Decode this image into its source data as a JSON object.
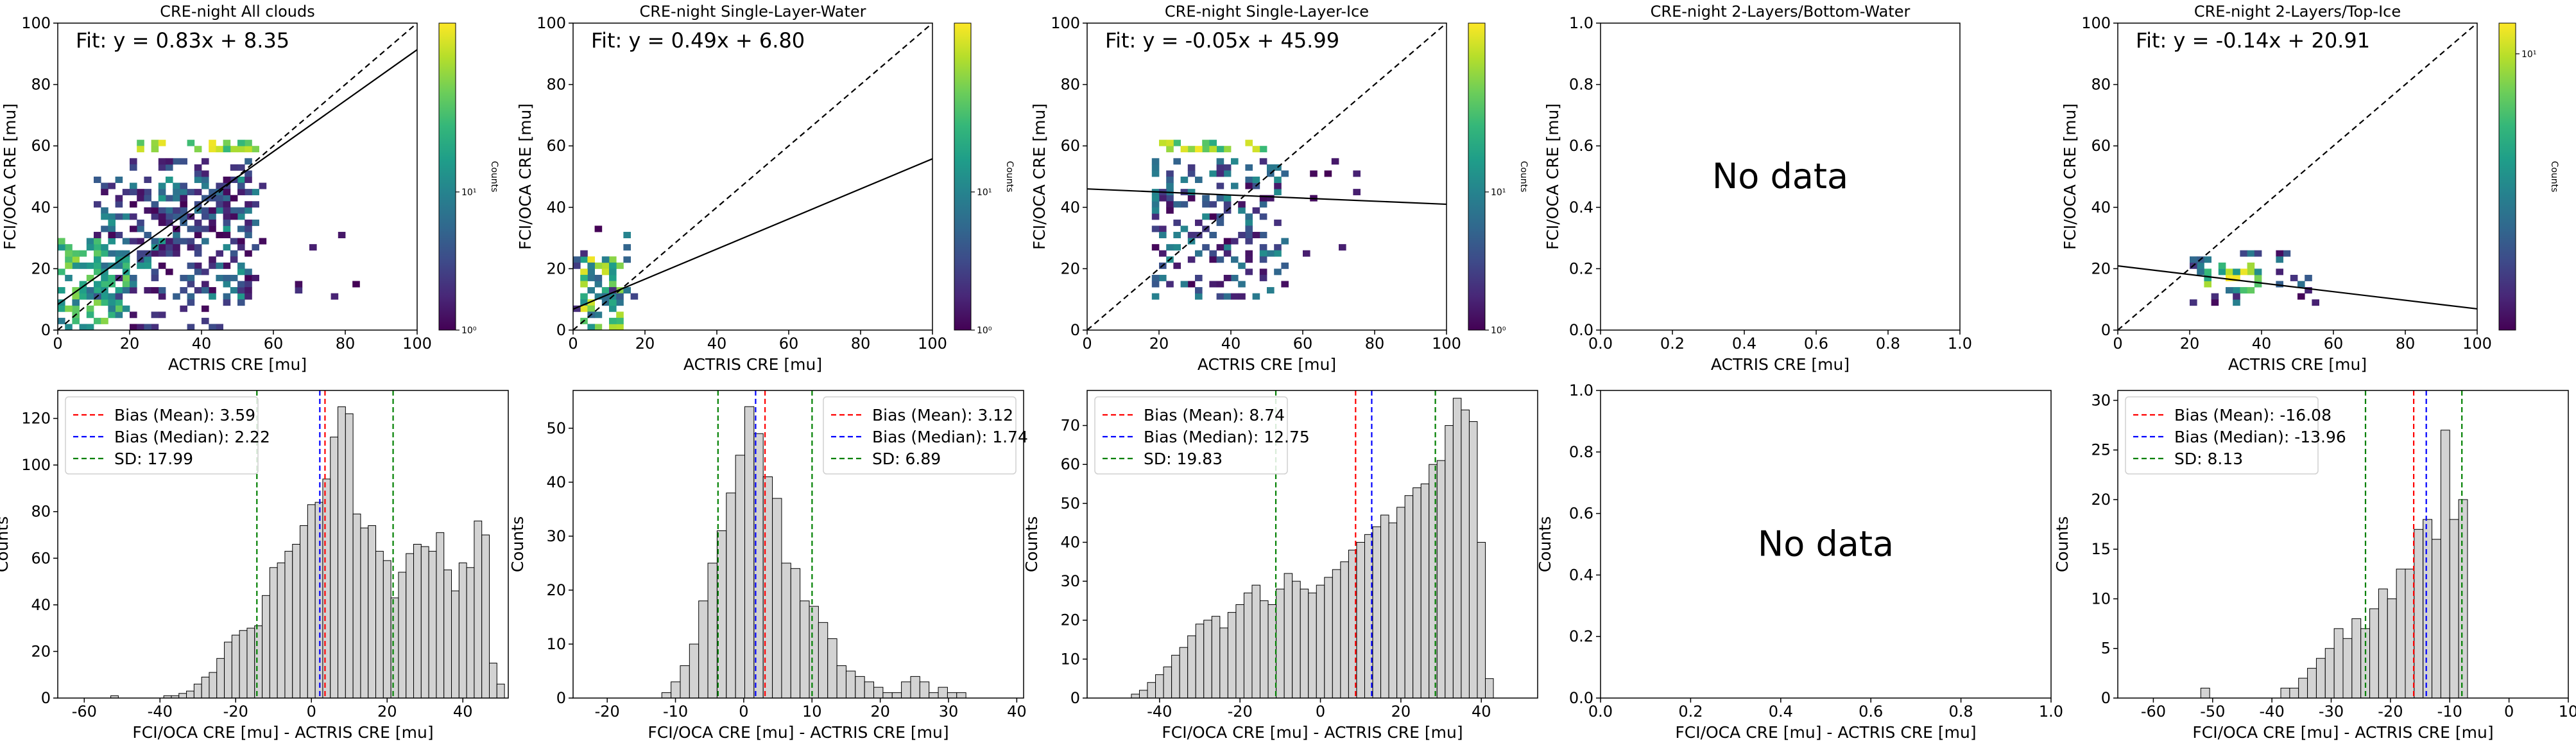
{
  "colors": {
    "fit_line": "#000000",
    "one_to_one": "#000000",
    "hist_fill": "#d3d3d3",
    "hist_edge": "#000000",
    "mean": "#ff0000",
    "median": "#0000ff",
    "sd": "#008000"
  },
  "colormap": "viridis",
  "chart_data": [
    {
      "type": "heatmap",
      "panel": "top",
      "col": 0,
      "title": "CRE-night All clouds",
      "xlabel": "ACTRIS CRE [mu]",
      "ylabel": "FCI/OCA CRE [mu]",
      "xlim": [
        0,
        100
      ],
      "ylim": [
        0,
        100
      ],
      "xticks": [
        0,
        20,
        40,
        60,
        80,
        100
      ],
      "yticks": [
        0,
        20,
        40,
        60,
        80,
        100
      ],
      "fit_text": "Fit: y = 0.83x + 8.35",
      "fit": {
        "slope": 0.83,
        "intercept": 8.35
      },
      "one_to_one": true,
      "colorbar": {
        "label": "Counts",
        "scale": "log",
        "ticks": [
          "10⁰",
          "10¹"
        ]
      },
      "clusters": [
        {
          "x": [
            0,
            20
          ],
          "y": [
            0,
            30
          ],
          "count": 110,
          "level": [
            0.35,
            0.85
          ]
        },
        {
          "x": [
            10,
            55
          ],
          "y": [
            10,
            50
          ],
          "count": 170,
          "level": [
            0.0,
            0.55
          ]
        },
        {
          "x": [
            20,
            55
          ],
          "y": [
            0,
            40
          ],
          "count": 70,
          "level": [
            0.0,
            0.3
          ]
        },
        {
          "x": [
            20,
            55
          ],
          "y": [
            32,
            56
          ],
          "count": 80,
          "level": [
            0.0,
            0.35
          ]
        },
        {
          "x": [
            22,
            55
          ],
          "y": [
            58,
            62
          ],
          "count": 26,
          "level": [
            0.65,
            1.0
          ]
        },
        {
          "x": [
            55,
            90
          ],
          "y": [
            10,
            50
          ],
          "count": 9,
          "level": [
            0.0,
            0.15
          ]
        }
      ]
    },
    {
      "type": "heatmap",
      "panel": "top",
      "col": 1,
      "title": "CRE-night Single-Layer-Water",
      "xlabel": "ACTRIS CRE [mu]",
      "ylabel": "FCI/OCA CRE [mu]",
      "xlim": [
        0,
        100
      ],
      "ylim": [
        0,
        100
      ],
      "xticks": [
        0,
        20,
        40,
        60,
        80,
        100
      ],
      "yticks": [
        0,
        20,
        40,
        60,
        80,
        100
      ],
      "fit_text": "Fit: y = 0.49x + 6.80",
      "fit": {
        "slope": 0.49,
        "intercept": 6.8
      },
      "one_to_one": true,
      "colorbar": {
        "label": "Counts",
        "scale": "log",
        "ticks": [
          "10⁰",
          "10¹"
        ]
      },
      "clusters": [
        {
          "x": [
            2,
            14
          ],
          "y": [
            0,
            24
          ],
          "count": 60,
          "level": [
            0.3,
            1.0
          ]
        },
        {
          "x": [
            0,
            18
          ],
          "y": [
            0,
            34
          ],
          "count": 25,
          "level": [
            0.0,
            0.45
          ]
        }
      ]
    },
    {
      "type": "heatmap",
      "panel": "top",
      "col": 2,
      "title": "CRE-night Single-Layer-Ice",
      "xlabel": "ACTRIS CRE [mu]",
      "ylabel": "FCI/OCA CRE [mu]",
      "xlim": [
        0,
        100
      ],
      "ylim": [
        0,
        100
      ],
      "xticks": [
        0,
        20,
        40,
        60,
        80,
        100
      ],
      "yticks": [
        0,
        20,
        40,
        60,
        80,
        100
      ],
      "fit_text": "Fit: y = -0.05x + 45.99",
      "fit": {
        "slope": -0.05,
        "intercept": 45.99
      },
      "one_to_one": true,
      "colorbar": {
        "label": "Counts",
        "scale": "log",
        "ticks": [
          "10⁰",
          "10¹"
        ]
      },
      "clusters": [
        {
          "x": [
            18,
            55
          ],
          "y": [
            10,
            56
          ],
          "count": 170,
          "level": [
            0.0,
            0.5
          ]
        },
        {
          "x": [
            20,
            52
          ],
          "y": [
            58,
            62
          ],
          "count": 22,
          "level": [
            0.6,
            1.0
          ]
        },
        {
          "x": [
            55,
            75
          ],
          "y": [
            20,
            60
          ],
          "count": 8,
          "level": [
            0.0,
            0.12
          ]
        }
      ]
    },
    {
      "type": "heatmap",
      "panel": "top",
      "col": 3,
      "title": "CRE-night 2-Layers/Bottom-Water",
      "xlabel": "ACTRIS CRE [mu]",
      "ylabel": "FCI/OCA CRE [mu]",
      "xlim": [
        0,
        1
      ],
      "ylim": [
        0,
        1
      ],
      "xticks": [
        "0.0",
        "0.2",
        "0.4",
        "0.6",
        "0.8",
        "1.0"
      ],
      "yticks": [
        "0.0",
        "0.2",
        "0.4",
        "0.6",
        "0.8",
        "1.0"
      ],
      "no_data": "No data"
    },
    {
      "type": "heatmap",
      "panel": "top",
      "col": 4,
      "title": "CRE-night 2-Layers/Top-Ice",
      "xlabel": "ACTRIS CRE [mu]",
      "ylabel": "FCI/OCA CRE [mu]",
      "xlim": [
        0,
        100
      ],
      "ylim": [
        0,
        100
      ],
      "xticks": [
        0,
        20,
        40,
        60,
        80,
        100
      ],
      "yticks": [
        0,
        20,
        40,
        60,
        80,
        100
      ],
      "fit_text": "Fit: y = -0.14x + 20.91",
      "fit": {
        "slope": -0.14,
        "intercept": 20.91
      },
      "one_to_one": true,
      "colorbar": {
        "label": "Counts",
        "scale": "log",
        "ticks": [
          "10¹"
        ]
      },
      "clusters": [
        {
          "x": [
            24,
            40
          ],
          "y": [
            12,
            22
          ],
          "count": 22,
          "level": [
            0.45,
            1.0
          ]
        },
        {
          "x": [
            20,
            55
          ],
          "y": [
            8,
            26
          ],
          "count": 28,
          "level": [
            0.0,
            0.45
          ]
        }
      ]
    },
    {
      "type": "bar",
      "panel": "bottom",
      "col": 0,
      "xlabel": "FCI/OCA CRE [mu] - ACTRIS CRE [mu]",
      "ylabel": "Counts",
      "xlim": [
        -67,
        52
      ],
      "ylim": [
        0,
        132
      ],
      "xticks": [
        -60,
        -40,
        -20,
        0,
        20,
        40
      ],
      "yticks": [
        0,
        20,
        40,
        60,
        80,
        100,
        120
      ],
      "bins_start": -53,
      "bin_width": 2,
      "counts": [
        1,
        0,
        0,
        0,
        0,
        0,
        0,
        1,
        1,
        2,
        3,
        6,
        9,
        11,
        17,
        24,
        27,
        29,
        30,
        31,
        44,
        56,
        58,
        63,
        66,
        74,
        83,
        84,
        94,
        112,
        125,
        122,
        79,
        73,
        74,
        63,
        59,
        43,
        54,
        62,
        66,
        65,
        63,
        71,
        55,
        46,
        58,
        56,
        76,
        70,
        15,
        6
      ],
      "bias_mean": 3.59,
      "bias_median": 2.22,
      "sd": 17.99,
      "legend": [
        "Bias (Mean): 3.59",
        "Bias (Median): 2.22",
        "SD: 17.99"
      ],
      "legend_loc": "upper left"
    },
    {
      "type": "bar",
      "panel": "bottom",
      "col": 1,
      "xlabel": "FCI/OCA CRE [mu] - ACTRIS CRE [mu]",
      "ylabel": "Counts",
      "xlim": [
        -25,
        41
      ],
      "ylim": [
        0,
        57
      ],
      "xticks": [
        -20,
        -10,
        0,
        10,
        20,
        30,
        40
      ],
      "yticks": [
        0,
        10,
        20,
        30,
        40,
        50
      ],
      "bins_start": -12,
      "bin_width": 1.35,
      "counts": [
        1,
        3,
        6,
        10,
        18,
        25,
        31,
        38,
        45,
        54,
        49,
        41,
        37,
        25,
        24,
        18,
        17,
        14,
        11,
        6,
        5,
        4,
        3,
        2,
        1,
        1,
        3,
        4,
        3,
        1,
        2,
        1,
        1
      ],
      "bias_mean": 3.12,
      "bias_median": 1.74,
      "sd": 6.89,
      "legend": [
        "Bias (Mean): 3.12",
        "Bias (Median): 1.74",
        "SD: 6.89"
      ],
      "legend_loc": "upper right"
    },
    {
      "type": "bar",
      "panel": "bottom",
      "col": 2,
      "xlabel": "FCI/OCA CRE [mu] - ACTRIS CRE [mu]",
      "ylabel": "Counts",
      "xlim": [
        -58,
        54
      ],
      "ylim": [
        0,
        79
      ],
      "xticks": [
        -40,
        -20,
        0,
        20,
        40
      ],
      "yticks": [
        0,
        10,
        20,
        30,
        40,
        50,
        60,
        70
      ],
      "bins_start": -47,
      "bin_width": 2,
      "counts": [
        1,
        2,
        4,
        6,
        8,
        11,
        13,
        16,
        19,
        20,
        21,
        18,
        22,
        24,
        27,
        29,
        25,
        24,
        28,
        32,
        30,
        28,
        27,
        29,
        31,
        33,
        35,
        38,
        40,
        42,
        44,
        47,
        45,
        49,
        52,
        54,
        55,
        60,
        61,
        70,
        77,
        74,
        71,
        40,
        5
      ],
      "bias_mean": 8.74,
      "bias_median": 12.75,
      "sd": 19.83,
      "legend": [
        "Bias (Mean): 8.74",
        "Bias (Median): 12.75",
        "SD: 19.83"
      ],
      "legend_loc": "upper left"
    },
    {
      "type": "bar",
      "panel": "bottom",
      "col": 3,
      "xlabel": "FCI/OCA CRE [mu] - ACTRIS CRE [mu]",
      "ylabel": "Counts",
      "xlim": [
        0,
        1
      ],
      "ylim": [
        0,
        1
      ],
      "xticks": [
        "0.0",
        "0.2",
        "0.4",
        "0.6",
        "0.8",
        "1.0"
      ],
      "yticks": [
        "0.0",
        "0.2",
        "0.4",
        "0.6",
        "0.8",
        "1.0"
      ],
      "no_data": "No data"
    },
    {
      "type": "bar",
      "panel": "bottom",
      "col": 4,
      "xlabel": "FCI/OCA CRE [mu] - ACTRIS CRE [mu]",
      "ylabel": "Counts",
      "xlim": [
        -66,
        10
      ],
      "ylim": [
        0,
        31
      ],
      "xticks": [
        -60,
        -50,
        -40,
        -30,
        -20,
        -10,
        0,
        10
      ],
      "yticks": [
        0,
        5,
        10,
        15,
        20,
        25,
        30
      ],
      "bins_start": -52,
      "bin_width": 1.5,
      "counts": [
        1,
        0,
        0,
        0,
        0,
        0,
        0,
        0,
        0,
        1,
        1,
        2,
        3,
        4,
        5,
        7,
        6,
        8,
        7,
        9,
        11,
        10,
        13,
        13,
        17,
        18,
        16,
        27,
        18,
        20,
        0,
        0
      ],
      "bias_mean": -16.08,
      "bias_median": -13.96,
      "sd": 8.13,
      "legend": [
        "Bias (Mean): -16.08",
        "Bias (Median): -13.96",
        "SD: 8.13"
      ],
      "legend_loc": "upper left"
    }
  ]
}
